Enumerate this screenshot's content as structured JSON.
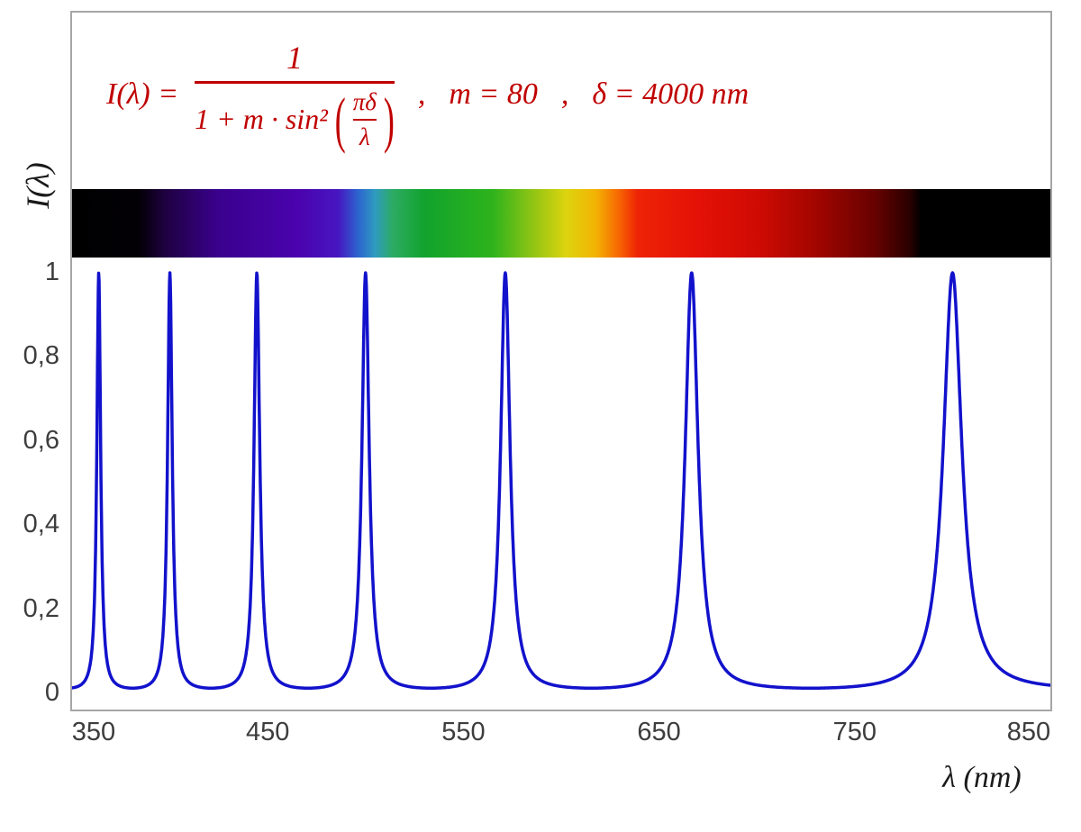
{
  "formula": {
    "lhs": "I(λ) =",
    "numerator": "1",
    "den_prefix": "1 + m · sin²",
    "open_paren": "(",
    "inner_numerator": "πδ",
    "inner_denominator": "λ",
    "close_paren": ")",
    "separator1": ",",
    "param_m": "m = 80",
    "separator2": ",",
    "param_delta": "δ = 4000 nm",
    "color": "#c00000"
  },
  "chart_data": {
    "type": "line",
    "formula": "I(λ) = 1 / (1 + m·sin²(πδ/λ))",
    "parameters": {
      "m": 80,
      "delta_nm": 4000
    },
    "x_axis": {
      "label": "λ  (nm)",
      "range": [
        350,
        850
      ],
      "tick_values": [
        350,
        450,
        550,
        650,
        750,
        850
      ],
      "tick_labels": [
        "350",
        "450",
        "550",
        "650",
        "750",
        "850"
      ]
    },
    "y_axis": {
      "label": "I(λ)",
      "range": [
        0,
        1
      ],
      "tick_values": [
        1,
        0.8,
        0.6,
        0.4,
        0.2,
        0
      ],
      "tick_labels": [
        "1",
        "0,8",
        "0,6",
        "0,4",
        "0,2",
        "0"
      ]
    },
    "peaks_nm": [
      363.6,
      400,
      444.4,
      500,
      571.4,
      666.7,
      800
    ],
    "peak_intensity": 1,
    "min_intensity": 0.0123,
    "grid": false,
    "legend": false,
    "curve_color": "#1212cc",
    "frame_color": "#a6a6a6",
    "spectrum_bar_stops": [
      {
        "pos": 0.0,
        "color": "#000000"
      },
      {
        "pos": 0.068,
        "color": "#020005"
      },
      {
        "pos": 0.095,
        "color": "#1e0140"
      },
      {
        "pos": 0.15,
        "color": "#3a018e"
      },
      {
        "pos": 0.23,
        "color": "#4a02ad"
      },
      {
        "pos": 0.272,
        "color": "#4716c0"
      },
      {
        "pos": 0.292,
        "color": "#2c63cf"
      },
      {
        "pos": 0.31,
        "color": "#2f9bbf"
      },
      {
        "pos": 0.328,
        "color": "#2cab62"
      },
      {
        "pos": 0.36,
        "color": "#12a32e"
      },
      {
        "pos": 0.43,
        "color": "#2eb31c"
      },
      {
        "pos": 0.47,
        "color": "#8ec414"
      },
      {
        "pos": 0.505,
        "color": "#ddd40e"
      },
      {
        "pos": 0.535,
        "color": "#f3b303"
      },
      {
        "pos": 0.558,
        "color": "#f76a02"
      },
      {
        "pos": 0.578,
        "color": "#ee2306"
      },
      {
        "pos": 0.64,
        "color": "#e41106"
      },
      {
        "pos": 0.7,
        "color": "#cf0b03"
      },
      {
        "pos": 0.76,
        "color": "#a30500"
      },
      {
        "pos": 0.82,
        "color": "#670200"
      },
      {
        "pos": 0.856,
        "color": "#2a0000"
      },
      {
        "pos": 0.868,
        "color": "#000000"
      },
      {
        "pos": 1.0,
        "color": "#000000"
      }
    ]
  }
}
